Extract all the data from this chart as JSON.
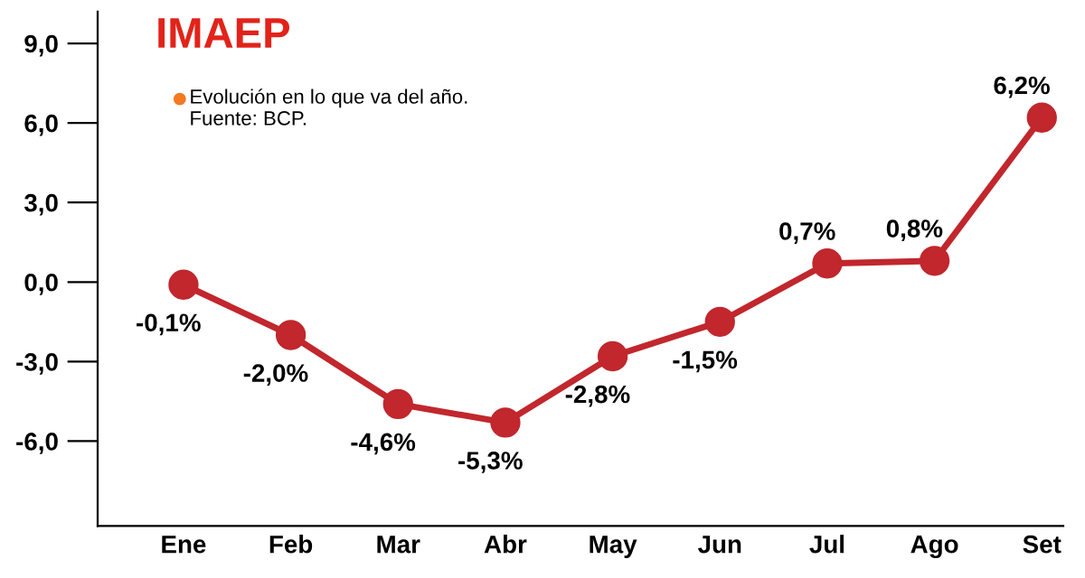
{
  "chart_data": {
    "type": "line",
    "title": "IMAEP",
    "annotations": [
      "Evolución en lo que va del año. Fuente: BCP."
    ],
    "categories": [
      "Ene",
      "Feb",
      "Mar",
      "Abr",
      "May",
      "Jun",
      "Jul",
      "Ago",
      "Set"
    ],
    "series": [
      {
        "color": "#c1272d",
        "values": [
          -0.1,
          -2.0,
          -4.6,
          -5.3,
          -2.8,
          -1.5,
          0.7,
          0.8,
          6.2
        ]
      }
    ],
    "value_labels": [
      "-0,1%",
      "-2,0%",
      "-4,6%",
      "-5,3%",
      "-2,8%",
      "-1,5%",
      "0,7%",
      "0,8%",
      "6,2%"
    ],
    "ylim": [
      -9.2,
      10.2
    ],
    "yticks": [
      {
        "value": -6,
        "label": "-6,0"
      },
      {
        "value": -3,
        "label": "-3,0"
      },
      {
        "value": 0,
        "label": "0,0"
      },
      {
        "value": 3,
        "label": "3,0"
      },
      {
        "value": 6,
        "label": "6,0"
      },
      {
        "value": 9,
        "label": "9,0"
      }
    ],
    "marker": "circle",
    "line_style": "solid",
    "grid": false,
    "legend": false
  }
}
